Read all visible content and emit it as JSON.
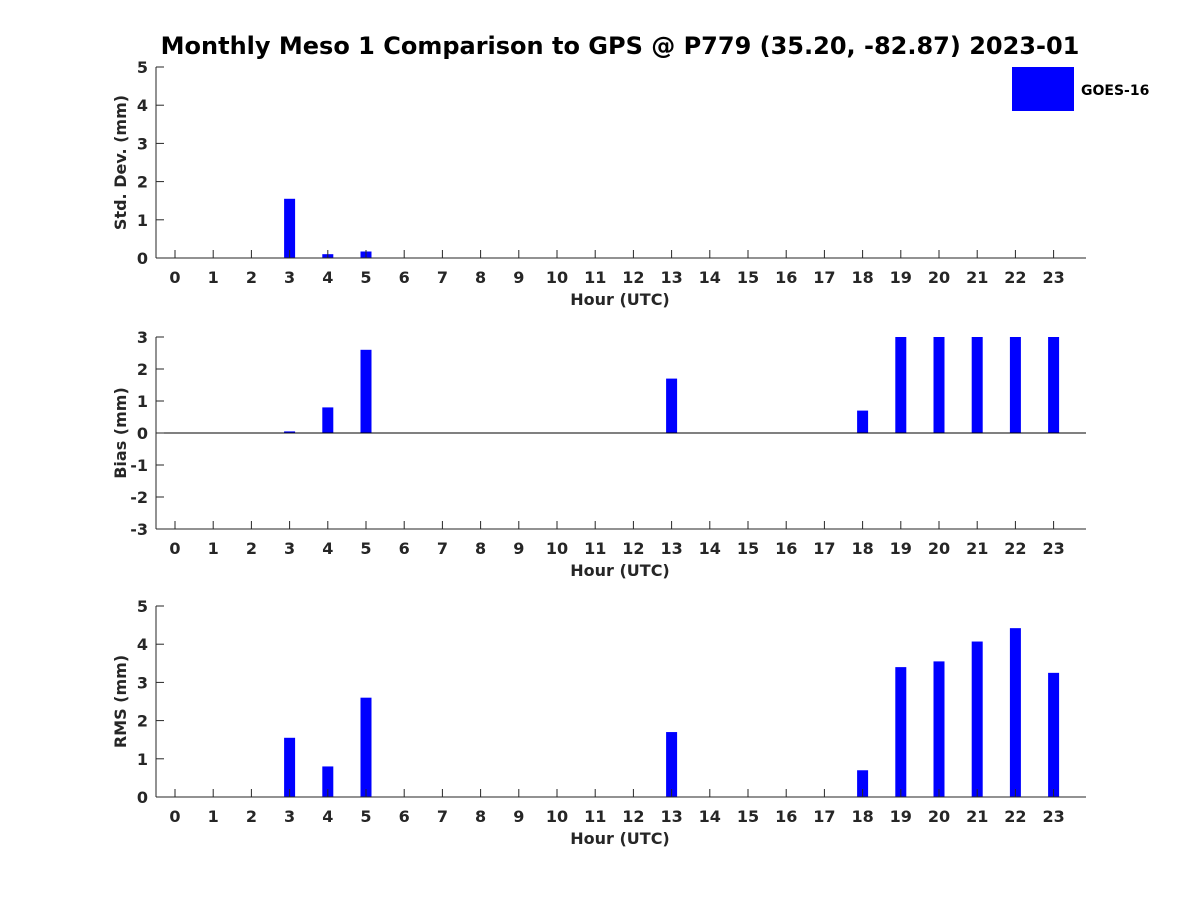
{
  "figure": {
    "title": "Monthly Meso 1 Comparison to GPS @ P779 (35.20, -82.87) 2023-01",
    "legend": {
      "label": "GOES-16",
      "color": "#0000ff",
      "position": "top-right"
    }
  },
  "chart_data": [
    {
      "type": "bar",
      "xlabel": "Hour (UTC)",
      "ylabel": "Std. Dev. (mm)",
      "ylim": [
        0,
        5
      ],
      "yticks": [
        0,
        1,
        2,
        3,
        4,
        5
      ],
      "categories": [
        "0",
        "1",
        "2",
        "3",
        "4",
        "5",
        "6",
        "7",
        "8",
        "9",
        "10",
        "11",
        "12",
        "13",
        "14",
        "15",
        "16",
        "17",
        "18",
        "19",
        "20",
        "21",
        "22",
        "23"
      ],
      "series": [
        {
          "name": "GOES-16",
          "color": "#0000ff",
          "values": [
            0,
            0,
            0,
            1.55,
            0.1,
            0.17,
            0,
            0,
            0,
            0,
            0,
            0,
            0,
            0,
            0,
            0,
            0,
            0,
            0,
            0,
            0,
            0,
            0,
            0
          ]
        }
      ],
      "grid": false
    },
    {
      "type": "bar",
      "xlabel": "Hour (UTC)",
      "ylabel": "Bias (mm)",
      "ylim": [
        -3,
        3
      ],
      "yticks": [
        -3,
        -2,
        -1,
        0,
        1,
        2,
        3
      ],
      "categories": [
        "0",
        "1",
        "2",
        "3",
        "4",
        "5",
        "6",
        "7",
        "8",
        "9",
        "10",
        "11",
        "12",
        "13",
        "14",
        "15",
        "16",
        "17",
        "18",
        "19",
        "20",
        "21",
        "22",
        "23"
      ],
      "series": [
        {
          "name": "GOES-16",
          "color": "#0000ff",
          "values": [
            0,
            0,
            0,
            0.05,
            0.8,
            2.6,
            0,
            0,
            0,
            0,
            0,
            0,
            0,
            1.7,
            0,
            0,
            0,
            0,
            0.7,
            3,
            3,
            3,
            3,
            3
          ]
        }
      ],
      "grid": false
    },
    {
      "type": "bar",
      "xlabel": "Hour (UTC)",
      "ylabel": "RMS (mm)",
      "ylim": [
        0,
        5
      ],
      "yticks": [
        0,
        1,
        2,
        3,
        4,
        5
      ],
      "categories": [
        "0",
        "1",
        "2",
        "3",
        "4",
        "5",
        "6",
        "7",
        "8",
        "9",
        "10",
        "11",
        "12",
        "13",
        "14",
        "15",
        "16",
        "17",
        "18",
        "19",
        "20",
        "21",
        "22",
        "23"
      ],
      "series": [
        {
          "name": "GOES-16",
          "color": "#0000ff",
          "values": [
            0,
            0,
            0,
            1.55,
            0.8,
            2.6,
            0,
            0,
            0,
            0,
            0,
            0,
            0,
            1.7,
            0,
            0,
            0,
            0,
            0.7,
            3.4,
            3.55,
            4.07,
            4.42,
            3.25
          ]
        }
      ],
      "grid": false
    }
  ]
}
